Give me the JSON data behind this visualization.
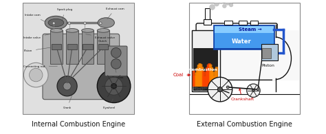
{
  "left_caption": "Internal Combustion Engine",
  "right_caption": "External Combustion Engine",
  "fig_width": 4.74,
  "fig_height": 1.95,
  "dpi": 100,
  "bg_color": "#ffffff",
  "caption_fontsize": 7.0,
  "caption_color": "#111111",
  "border_color": "#888888",
  "water_color": "#4499ee",
  "steam_color": "#88ccff",
  "fire_color": "#ff4400",
  "fire_color2": "#ff8800",
  "coal_color": "#333333",
  "body_color": "#f8f8f8",
  "pipe_color": "#2255cc",
  "piston_color": "#aabbcc",
  "wheel_color": "#222222",
  "label_red": "#cc0000",
  "label_black": "#111111",
  "steam_text": "Steam →",
  "water_text": "Water",
  "combustion_text": "Combustion",
  "coal_text": "Coal",
  "piston_text": "Piston",
  "crankshaft_text": "Crankshaft"
}
